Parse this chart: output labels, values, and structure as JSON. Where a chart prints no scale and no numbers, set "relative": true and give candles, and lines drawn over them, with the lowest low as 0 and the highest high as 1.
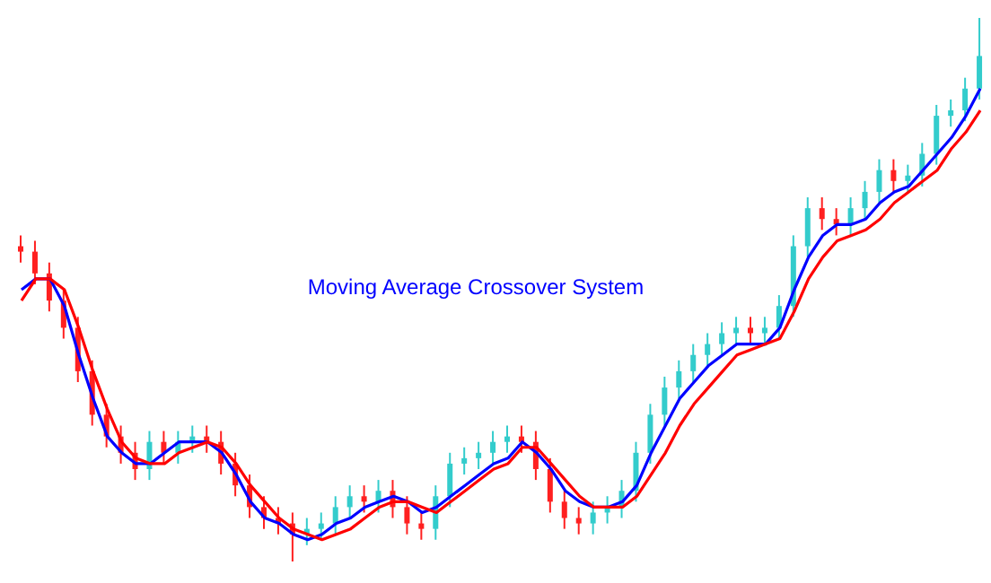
{
  "chart_data": {
    "type": "candlestick",
    "title": "Moving Average Crossover System",
    "relative": true,
    "categories": [
      null,
      null,
      null,
      null,
      null,
      null,
      null,
      null,
      null,
      null,
      null,
      null,
      null,
      null,
      null,
      null,
      null,
      null,
      null,
      null,
      null,
      null,
      null,
      null,
      null,
      null,
      null,
      null,
      null,
      null,
      null,
      null,
      null,
      null,
      null,
      null,
      null,
      null,
      null,
      null,
      null,
      null,
      null,
      null,
      null,
      null,
      null,
      null,
      null,
      null,
      null,
      null,
      null,
      null,
      null,
      null,
      null,
      null,
      null,
      null,
      null,
      null,
      null,
      null,
      null,
      null,
      null,
      null
    ],
    "ohlc": [
      [
        0.58,
        0.6,
        0.55,
        0.57
      ],
      [
        0.57,
        0.59,
        0.51,
        0.53
      ],
      [
        0.53,
        0.55,
        0.46,
        0.48
      ],
      [
        0.48,
        0.5,
        0.41,
        0.43
      ],
      [
        0.43,
        0.45,
        0.33,
        0.35
      ],
      [
        0.35,
        0.37,
        0.25,
        0.27
      ],
      [
        0.27,
        0.29,
        0.21,
        0.23
      ],
      [
        0.23,
        0.25,
        0.18,
        0.2
      ],
      [
        0.2,
        0.22,
        0.15,
        0.17
      ],
      [
        0.17,
        0.24,
        0.15,
        0.22
      ],
      [
        0.22,
        0.24,
        0.18,
        0.2
      ],
      [
        0.2,
        0.24,
        0.18,
        0.22
      ],
      [
        0.22,
        0.25,
        0.2,
        0.23
      ],
      [
        0.23,
        0.25,
        0.2,
        0.22
      ],
      [
        0.22,
        0.24,
        0.16,
        0.18
      ],
      [
        0.18,
        0.2,
        0.12,
        0.14
      ],
      [
        0.14,
        0.16,
        0.08,
        0.1
      ],
      [
        0.1,
        0.12,
        0.06,
        0.08
      ],
      [
        0.08,
        0.1,
        0.05,
        0.07
      ],
      [
        0.07,
        0.09,
        0,
        0.05
      ],
      [
        0.05,
        0.08,
        0.03,
        0.06
      ],
      [
        0.06,
        0.09,
        0.04,
        0.07
      ],
      [
        0.07,
        0.12,
        0.05,
        0.1
      ],
      [
        0.1,
        0.14,
        0.08,
        0.12
      ],
      [
        0.12,
        0.14,
        0.09,
        0.11
      ],
      [
        0.11,
        0.15,
        0.09,
        0.13
      ],
      [
        0.13,
        0.15,
        0.08,
        0.1
      ],
      [
        0.1,
        0.12,
        0.05,
        0.07
      ],
      [
        0.07,
        0.09,
        0.04,
        0.06
      ],
      [
        0.06,
        0.14,
        0.04,
        0.12
      ],
      [
        0.12,
        0.2,
        0.1,
        0.18
      ],
      [
        0.18,
        0.21,
        0.16,
        0.19
      ],
      [
        0.19,
        0.22,
        0.17,
        0.2
      ],
      [
        0.2,
        0.24,
        0.18,
        0.22
      ],
      [
        0.22,
        0.25,
        0.2,
        0.23
      ],
      [
        0.23,
        0.25,
        0.2,
        0.22
      ],
      [
        0.22,
        0.24,
        0.15,
        0.17
      ],
      [
        0.17,
        0.19,
        0.09,
        0.11
      ],
      [
        0.11,
        0.13,
        0.06,
        0.08
      ],
      [
        0.08,
        0.1,
        0.05,
        0.07
      ],
      [
        0.07,
        0.11,
        0.05,
        0.09
      ],
      [
        0.09,
        0.12,
        0.07,
        0.1
      ],
      [
        0.1,
        0.15,
        0.08,
        0.13
      ],
      [
        0.13,
        0.22,
        0.11,
        0.2
      ],
      [
        0.2,
        0.29,
        0.18,
        0.27
      ],
      [
        0.27,
        0.34,
        0.25,
        0.32
      ],
      [
        0.32,
        0.37,
        0.3,
        0.35
      ],
      [
        0.35,
        0.4,
        0.33,
        0.38
      ],
      [
        0.38,
        0.42,
        0.36,
        0.4
      ],
      [
        0.4,
        0.44,
        0.38,
        0.42
      ],
      [
        0.42,
        0.45,
        0.4,
        0.43
      ],
      [
        0.43,
        0.45,
        0.4,
        0.42
      ],
      [
        0.42,
        0.45,
        0.4,
        0.43
      ],
      [
        0.43,
        0.49,
        0.41,
        0.47
      ],
      [
        0.47,
        0.6,
        0.45,
        0.58
      ],
      [
        0.58,
        0.67,
        0.56,
        0.65
      ],
      [
        0.65,
        0.67,
        0.61,
        0.63
      ],
      [
        0.63,
        0.65,
        0.6,
        0.62
      ],
      [
        0.62,
        0.67,
        0.6,
        0.65
      ],
      [
        0.65,
        0.7,
        0.63,
        0.68
      ],
      [
        0.68,
        0.74,
        0.66,
        0.72
      ],
      [
        0.72,
        0.74,
        0.68,
        0.7
      ],
      [
        0.7,
        0.73,
        0.68,
        0.71
      ],
      [
        0.71,
        0.77,
        0.69,
        0.75
      ],
      [
        0.75,
        0.84,
        0.73,
        0.82
      ],
      [
        0.82,
        0.85,
        0.8,
        0.83
      ],
      [
        0.83,
        0.89,
        0.81,
        0.87
      ],
      [
        0.87,
        1,
        0.85,
        0.93
      ]
    ],
    "colors": [
      "#ff2020",
      "#ff2020",
      "#ff2020",
      "#ff2020",
      "#ff2020",
      "#ff2020",
      "#ff2020",
      "#ff2020",
      "#ff2020",
      "#33cccc",
      "#ff2020",
      "#33cccc",
      "#33cccc",
      "#ff2020",
      "#ff2020",
      "#ff2020",
      "#ff2020",
      "#ff2020",
      "#ff2020",
      "#ff2020",
      "#33cccc",
      "#33cccc",
      "#33cccc",
      "#33cccc",
      "#ff2020",
      "#33cccc",
      "#ff2020",
      "#ff2020",
      "#ff2020",
      "#33cccc",
      "#33cccc",
      "#33cccc",
      "#33cccc",
      "#33cccc",
      "#33cccc",
      "#ff2020",
      "#ff2020",
      "#ff2020",
      "#ff2020",
      "#ff2020",
      "#33cccc",
      "#33cccc",
      "#33cccc",
      "#33cccc",
      "#33cccc",
      "#33cccc",
      "#33cccc",
      "#33cccc",
      "#33cccc",
      "#33cccc",
      "#33cccc",
      "#ff2020",
      "#33cccc",
      "#33cccc",
      "#33cccc",
      "#33cccc",
      "#ff2020",
      "#ff2020",
      "#33cccc",
      "#33cccc",
      "#33cccc",
      "#ff2020",
      "#33cccc",
      "#33cccc",
      "#33cccc",
      "#33cccc",
      "#33cccc",
      "#33cccc"
    ],
    "series": [
      {
        "type": "line",
        "color": "#0000ff",
        "values": [
          0.5,
          0.52,
          0.52,
          0.47,
          0.38,
          0.3,
          0.23,
          0.2,
          0.18,
          0.18,
          0.2,
          0.22,
          0.22,
          0.22,
          0.2,
          0.16,
          0.11,
          0.08,
          0.07,
          0.05,
          0.04,
          0.05,
          0.07,
          0.08,
          0.1,
          0.11,
          0.12,
          0.11,
          0.09,
          0.1,
          0.12,
          0.14,
          0.16,
          0.18,
          0.19,
          0.22,
          0.2,
          0.17,
          0.13,
          0.11,
          0.1,
          0.1,
          0.11,
          0.14,
          0.2,
          0.25,
          0.3,
          0.33,
          0.36,
          0.38,
          0.4,
          0.4,
          0.4,
          0.43,
          0.5,
          0.56,
          0.6,
          0.62,
          0.62,
          0.63,
          0.66,
          0.68,
          0.69,
          0.72,
          0.75,
          0.78,
          0.82,
          0.87
        ]
      },
      {
        "type": "line",
        "color": "#ff0000",
        "values": [
          0.48,
          0.52,
          0.52,
          0.5,
          0.43,
          0.35,
          0.28,
          0.22,
          0.19,
          0.18,
          0.18,
          0.2,
          0.21,
          0.22,
          0.21,
          0.18,
          0.14,
          0.11,
          0.08,
          0.06,
          0.05,
          0.04,
          0.05,
          0.06,
          0.08,
          0.1,
          0.11,
          0.11,
          0.1,
          0.09,
          0.11,
          0.13,
          0.15,
          0.17,
          0.18,
          0.21,
          0.21,
          0.18,
          0.15,
          0.12,
          0.1,
          0.1,
          0.1,
          0.12,
          0.16,
          0.2,
          0.25,
          0.29,
          0.32,
          0.35,
          0.38,
          0.39,
          0.4,
          0.41,
          0.46,
          0.52,
          0.56,
          0.59,
          0.6,
          0.61,
          0.63,
          0.66,
          0.68,
          0.7,
          0.72,
          0.76,
          0.79,
          0.83
        ]
      }
    ]
  }
}
